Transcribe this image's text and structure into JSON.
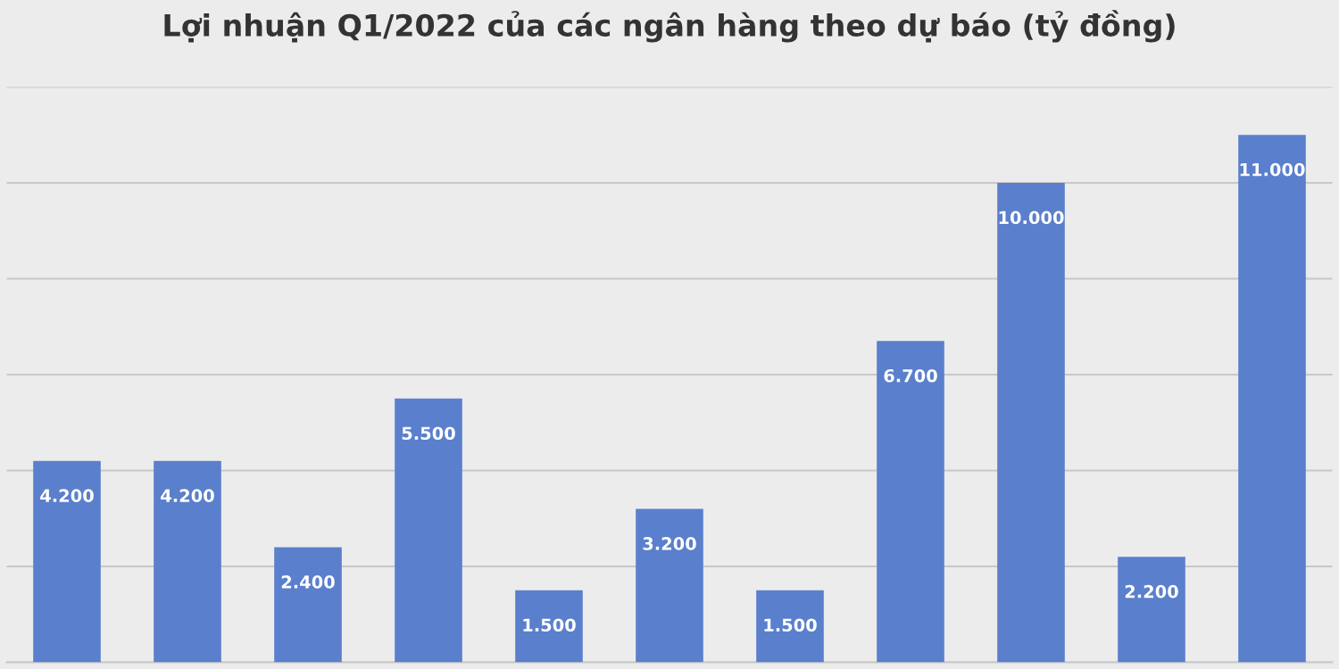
{
  "chart_data": {
    "type": "bar",
    "title": "Lợi nhuận Q1/2022 của các ngân hàng theo dự báo (tỷ đồng)",
    "categories": [
      null,
      null,
      null,
      null,
      null,
      null,
      null,
      null,
      null,
      null,
      null
    ],
    "values": [
      4200,
      4200,
      2400,
      5500,
      1500,
      3200,
      1500,
      6700,
      10000,
      2200,
      11000
    ],
    "value_labels": [
      "4.200",
      "4.200",
      "2.400",
      "5.500",
      "1.500",
      "3.200",
      "1.500",
      "6.700",
      "10.000",
      "2.200",
      "11.000"
    ],
    "color": "#5a7fcc",
    "ylim": [
      0,
      12000
    ],
    "yticks": [
      {
        "value": 0,
        "label": null
      },
      {
        "value": 2000,
        "label": null
      },
      {
        "value": 4000,
        "label": null
      },
      {
        "value": 6000,
        "label": null
      },
      {
        "value": 8000,
        "label": null
      },
      {
        "value": 10000,
        "label": null
      },
      {
        "value": 12000,
        "label": null
      }
    ],
    "grid": "y"
  }
}
